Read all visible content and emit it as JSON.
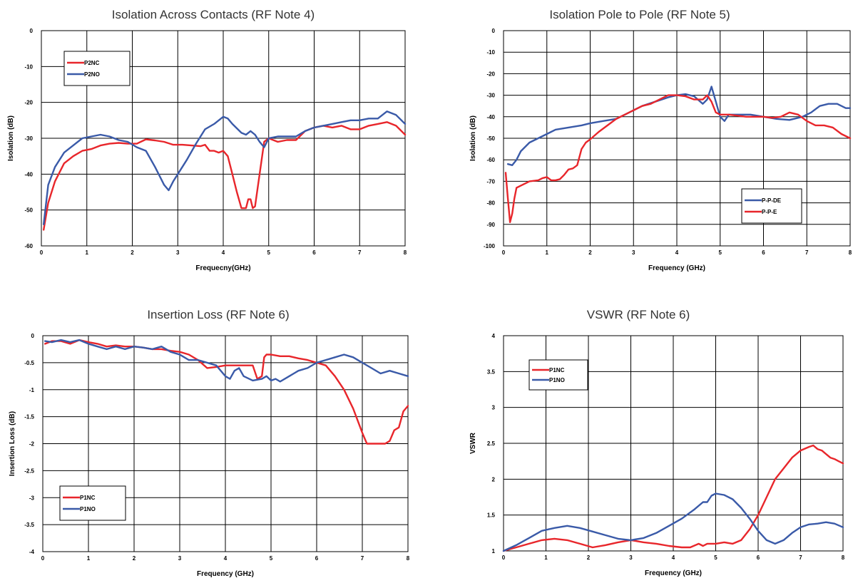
{
  "chart_data": [
    {
      "type": "line",
      "title": "Isolation Across Contacts (RF Note 4)",
      "xlabel": "Frequecny(GHz)",
      "ylabel": "Isolation (dB)",
      "xlim": [
        0,
        8
      ],
      "ylim": [
        -60,
        0
      ],
      "xticks": [
        "0",
        "1",
        "2",
        "3",
        "4",
        "5",
        "6",
        "7",
        "8"
      ],
      "yticks": [
        "0",
        "-10",
        "-20",
        "-30",
        "-40",
        "-50",
        "-60"
      ],
      "grid": true,
      "legend_position": "top-left",
      "series": [
        {
          "name": "P2NC",
          "color": "#e8262b",
          "x": [
            0.05,
            0.15,
            0.3,
            0.5,
            0.7,
            0.9,
            1.1,
            1.3,
            1.5,
            1.7,
            1.9,
            2.1,
            2.3,
            2.5,
            2.7,
            2.9,
            3.1,
            3.3,
            3.5,
            3.6,
            3.7,
            3.8,
            3.9,
            4.0,
            4.1,
            4.2,
            4.3,
            4.4,
            4.5,
            4.55,
            4.6,
            4.65,
            4.7,
            4.8,
            4.9,
            5.0,
            5.2,
            5.4,
            5.6,
            5.8,
            6.0,
            6.2,
            6.4,
            6.6,
            6.8,
            7.0,
            7.2,
            7.4,
            7.6,
            7.8,
            8.0
          ],
          "y": [
            -55.5,
            -48,
            -42,
            -37,
            -35,
            -33.5,
            -33,
            -32,
            -31.5,
            -31.3,
            -31.5,
            -31.5,
            -30.3,
            -30.6,
            -31,
            -31.8,
            -31.8,
            -32,
            -32.2,
            -31.8,
            -33.5,
            -33.5,
            -34,
            -33.5,
            -35,
            -40,
            -45,
            -49.5,
            -49.5,
            -47,
            -47,
            -49.5,
            -49,
            -40,
            -31,
            -30,
            -31,
            -30.5,
            -30.5,
            -28,
            -27,
            -26.5,
            -27,
            -26.5,
            -27.5,
            -27.5,
            -26.5,
            -26,
            -25.5,
            -26.5,
            -29
          ]
        },
        {
          "name": "P2NO",
          "color": "#3a5aa8",
          "x": [
            0.05,
            0.15,
            0.3,
            0.5,
            0.7,
            0.9,
            1.1,
            1.3,
            1.5,
            1.7,
            1.9,
            2.1,
            2.3,
            2.5,
            2.7,
            2.8,
            2.9,
            3.0,
            3.2,
            3.4,
            3.6,
            3.8,
            4.0,
            4.1,
            4.2,
            4.4,
            4.5,
            4.6,
            4.7,
            4.8,
            4.9,
            5.0,
            5.2,
            5.4,
            5.6,
            5.8,
            6.0,
            6.2,
            6.4,
            6.6,
            6.8,
            7.0,
            7.2,
            7.4,
            7.6,
            7.8,
            8.0
          ],
          "y": [
            -54,
            -43,
            -38,
            -34,
            -32,
            -30,
            -29.5,
            -29,
            -29.5,
            -30.5,
            -31,
            -32.5,
            -33.5,
            -38,
            -43,
            -44.5,
            -42,
            -40,
            -36,
            -31.5,
            -27.5,
            -26,
            -24,
            -24.5,
            -26,
            -28.5,
            -29,
            -28,
            -29,
            -31,
            -32.5,
            -30,
            -29.5,
            -29.5,
            -29.5,
            -28,
            -27,
            -26.5,
            -26,
            -25.5,
            -25,
            -25,
            -24.5,
            -24.5,
            -22.5,
            -23.5,
            -26
          ]
        }
      ]
    },
    {
      "type": "line",
      "title": "Isolation Pole to Pole (RF Note 5)",
      "xlabel": "Frequency (GHz)",
      "ylabel": "Isolation (dB)",
      "xlim": [
        0,
        8
      ],
      "ylim": [
        -100,
        0
      ],
      "xticks": [
        "0",
        "1",
        "2",
        "3",
        "4",
        "5",
        "6",
        "7",
        "8"
      ],
      "yticks": [
        "0",
        "-10",
        "-20",
        "-30",
        "-40",
        "-50",
        "-60",
        "-70",
        "-80",
        "-90",
        "-100"
      ],
      "grid": true,
      "legend_position": "bottom-right",
      "series": [
        {
          "name": "P-P-DE",
          "color": "#3a5aa8",
          "x": [
            0.1,
            0.2,
            0.3,
            0.4,
            0.6,
            0.8,
            1.0,
            1.2,
            1.5,
            1.8,
            2.0,
            2.3,
            2.6,
            2.9,
            3.2,
            3.5,
            3.8,
            4.0,
            4.2,
            4.4,
            4.6,
            4.7,
            4.8,
            4.9,
            5.0,
            5.1,
            5.2,
            5.4,
            5.7,
            6.0,
            6.3,
            6.6,
            6.9,
            7.1,
            7.3,
            7.5,
            7.7,
            7.9,
            8.0
          ],
          "y": [
            -62,
            -62.5,
            -60,
            -56,
            -52,
            -50,
            -48,
            -46,
            -45,
            -44,
            -43,
            -42,
            -41,
            -38,
            -35,
            -33,
            -31,
            -30,
            -29.5,
            -30.5,
            -34,
            -32,
            -26,
            -33,
            -40,
            -42,
            -39,
            -39,
            -39,
            -40,
            -41,
            -41.5,
            -40,
            -38,
            -35,
            -34,
            -34,
            -36,
            -36
          ]
        },
        {
          "name": "P-P-E",
          "color": "#e8262b",
          "x": [
            0.05,
            0.1,
            0.15,
            0.2,
            0.25,
            0.3,
            0.4,
            0.5,
            0.6,
            0.8,
            0.9,
            1.0,
            1.1,
            1.2,
            1.3,
            1.4,
            1.5,
            1.6,
            1.7,
            1.8,
            1.9,
            2.0,
            2.2,
            2.4,
            2.6,
            2.8,
            3.0,
            3.2,
            3.4,
            3.6,
            3.8,
            4.0,
            4.2,
            4.4,
            4.6,
            4.7,
            4.8,
            4.9,
            5.0,
            5.2,
            5.4,
            5.6,
            5.8,
            6.0,
            6.2,
            6.4,
            6.6,
            6.8,
            7.0,
            7.2,
            7.4,
            7.6,
            7.8,
            8.0
          ],
          "y": [
            -66,
            -78,
            -89,
            -85,
            -78,
            -73,
            -72,
            -71,
            -70,
            -69.5,
            -68.5,
            -68,
            -69.5,
            -69.5,
            -69,
            -67,
            -64.5,
            -64,
            -62.5,
            -55,
            -52,
            -50.5,
            -47,
            -44,
            -41,
            -39,
            -37,
            -35,
            -34,
            -32,
            -30,
            -30,
            -30.5,
            -32,
            -32,
            -30,
            -33,
            -38,
            -39,
            -39,
            -39.5,
            -40,
            -40,
            -40,
            -40.5,
            -40,
            -38,
            -39,
            -42,
            -44,
            -44,
            -45,
            -48,
            -50
          ]
        }
      ]
    },
    {
      "type": "line",
      "title": "Insertion Loss (RF Note 6)",
      "xlabel": "Frequency (GHz)",
      "ylabel": "Insertion Loss (dB)",
      "xlim": [
        0,
        8
      ],
      "ylim": [
        -4,
        0
      ],
      "xticks": [
        "0",
        "1",
        "2",
        "3",
        "4",
        "5",
        "6",
        "7",
        "8"
      ],
      "yticks": [
        "0",
        "-0.5",
        "-1",
        "-1.5",
        "-2",
        "-2.5",
        "-3",
        "-3.5",
        "-4"
      ],
      "grid": true,
      "legend_position": "bottom-left",
      "series": [
        {
          "name": "P1NC",
          "color": "#e8262b",
          "x": [
            0.05,
            0.2,
            0.4,
            0.6,
            0.8,
            1.0,
            1.2,
            1.4,
            1.6,
            1.8,
            2.0,
            2.2,
            2.4,
            2.6,
            2.8,
            3.0,
            3.2,
            3.4,
            3.6,
            3.8,
            4.0,
            4.2,
            4.4,
            4.6,
            4.7,
            4.8,
            4.85,
            4.9,
            5.0,
            5.2,
            5.4,
            5.6,
            5.8,
            6.0,
            6.2,
            6.4,
            6.6,
            6.8,
            7.0,
            7.1,
            7.2,
            7.3,
            7.5,
            7.6,
            7.7,
            7.8,
            7.9,
            8.0
          ],
          "y": [
            -0.15,
            -0.1,
            -0.1,
            -0.15,
            -0.08,
            -0.12,
            -0.15,
            -0.2,
            -0.18,
            -0.2,
            -0.2,
            -0.22,
            -0.25,
            -0.25,
            -0.28,
            -0.3,
            -0.35,
            -0.45,
            -0.6,
            -0.58,
            -0.55,
            -0.55,
            -0.55,
            -0.55,
            -0.8,
            -0.75,
            -0.4,
            -0.35,
            -0.35,
            -0.38,
            -0.38,
            -0.42,
            -0.45,
            -0.5,
            -0.55,
            -0.75,
            -1.0,
            -1.35,
            -1.8,
            -2.0,
            -2.0,
            -2.0,
            -2.0,
            -1.95,
            -1.75,
            -1.7,
            -1.4,
            -1.3
          ]
        },
        {
          "name": "P1NO",
          "color": "#3a5aa8",
          "x": [
            0.05,
            0.2,
            0.4,
            0.6,
            0.8,
            1.0,
            1.2,
            1.4,
            1.6,
            1.8,
            2.0,
            2.2,
            2.4,
            2.6,
            2.8,
            3.0,
            3.2,
            3.4,
            3.6,
            3.8,
            4.0,
            4.1,
            4.2,
            4.3,
            4.4,
            4.6,
            4.8,
            4.9,
            5.0,
            5.1,
            5.2,
            5.4,
            5.5,
            5.6,
            5.8,
            6.0,
            6.2,
            6.4,
            6.6,
            6.8,
            7.0,
            7.2,
            7.4,
            7.6,
            7.8,
            8.0
          ],
          "y": [
            -0.1,
            -0.12,
            -0.08,
            -0.12,
            -0.08,
            -0.15,
            -0.2,
            -0.25,
            -0.2,
            -0.25,
            -0.2,
            -0.22,
            -0.25,
            -0.2,
            -0.3,
            -0.35,
            -0.45,
            -0.45,
            -0.5,
            -0.55,
            -0.75,
            -0.8,
            -0.65,
            -0.6,
            -0.75,
            -0.83,
            -0.8,
            -0.75,
            -0.83,
            -0.8,
            -0.85,
            -0.75,
            -0.7,
            -0.65,
            -0.6,
            -0.5,
            -0.45,
            -0.4,
            -0.35,
            -0.4,
            -0.5,
            -0.6,
            -0.7,
            -0.65,
            -0.7,
            -0.75
          ]
        }
      ]
    },
    {
      "type": "line",
      "title": "VSWR (RF Note 6)",
      "xlabel": "Frequency (GHz)",
      "ylabel": "VSWR",
      "xlim": [
        0,
        8
      ],
      "ylim": [
        1,
        4
      ],
      "xticks": [
        "0",
        "1",
        "2",
        "3",
        "4",
        "5",
        "6",
        "7",
        "8"
      ],
      "yticks": [
        "4",
        "3.5",
        "3",
        "2.5",
        "2",
        "1.5",
        "1"
      ],
      "grid": true,
      "legend_position": "top-left",
      "series": [
        {
          "name": "P1NC",
          "color": "#e8262b",
          "x": [
            0.0,
            0.3,
            0.6,
            0.9,
            1.2,
            1.5,
            1.8,
            2.1,
            2.4,
            2.7,
            3.0,
            3.3,
            3.6,
            3.9,
            4.2,
            4.4,
            4.6,
            4.7,
            4.8,
            5.0,
            5.2,
            5.4,
            5.6,
            5.8,
            6.0,
            6.2,
            6.4,
            6.6,
            6.8,
            7.0,
            7.2,
            7.3,
            7.4,
            7.5,
            7.6,
            7.7,
            7.8,
            7.9,
            8.0
          ],
          "y": [
            1.0,
            1.05,
            1.1,
            1.15,
            1.17,
            1.15,
            1.1,
            1.05,
            1.08,
            1.12,
            1.15,
            1.12,
            1.1,
            1.07,
            1.05,
            1.05,
            1.1,
            1.07,
            1.1,
            1.1,
            1.12,
            1.1,
            1.15,
            1.3,
            1.5,
            1.75,
            2.0,
            2.15,
            2.3,
            2.4,
            2.45,
            2.47,
            2.42,
            2.4,
            2.35,
            2.3,
            2.28,
            2.25,
            2.22
          ]
        },
        {
          "name": "P1NO",
          "color": "#3a5aa8",
          "x": [
            0.0,
            0.3,
            0.6,
            0.9,
            1.2,
            1.5,
            1.8,
            2.1,
            2.4,
            2.7,
            3.0,
            3.3,
            3.6,
            3.9,
            4.2,
            4.5,
            4.7,
            4.8,
            4.9,
            5.0,
            5.2,
            5.4,
            5.6,
            5.8,
            6.0,
            6.2,
            6.4,
            6.6,
            6.8,
            7.0,
            7.2,
            7.4,
            7.6,
            7.8,
            8.0
          ],
          "y": [
            1.0,
            1.08,
            1.18,
            1.28,
            1.32,
            1.35,
            1.32,
            1.27,
            1.22,
            1.17,
            1.15,
            1.18,
            1.25,
            1.35,
            1.45,
            1.58,
            1.68,
            1.68,
            1.77,
            1.8,
            1.78,
            1.72,
            1.6,
            1.45,
            1.28,
            1.15,
            1.1,
            1.15,
            1.25,
            1.33,
            1.37,
            1.38,
            1.4,
            1.38,
            1.33
          ]
        }
      ]
    }
  ]
}
